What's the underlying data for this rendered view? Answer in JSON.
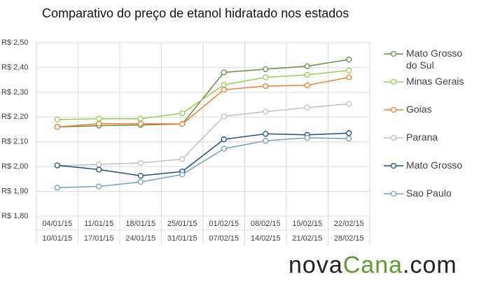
{
  "chart_data": {
    "type": "line",
    "title": "Comparativo do preço de etanol hidratado nos estados",
    "categories": [
      [
        "04/01/15",
        "10/01/15"
      ],
      [
        "11/01/15",
        "17/01/15"
      ],
      [
        "18/01/15",
        "24/01/15"
      ],
      [
        "25/01/15",
        "31/01/15"
      ],
      [
        "01/02/15",
        "07/02/15"
      ],
      [
        "08/02/15",
        "14/02/15"
      ],
      [
        "15/02/15",
        "21/02/15"
      ],
      [
        "22/02/15",
        "28/02/15"
      ]
    ],
    "series": [
      {
        "name": "Mato Grosso do Sul",
        "color": "#6b8e3e",
        "values": [
          2.16,
          2.165,
          2.168,
          2.172,
          2.38,
          2.393,
          2.405,
          2.432
        ]
      },
      {
        "name": "Minas Gerais",
        "color": "#92d050",
        "values": [
          2.19,
          2.193,
          2.193,
          2.215,
          2.33,
          2.36,
          2.37,
          2.388
        ]
      },
      {
        "name": "Goias",
        "color": "#ed7d31",
        "values": [
          2.16,
          2.173,
          2.173,
          2.172,
          2.31,
          2.325,
          2.328,
          2.36
        ]
      },
      {
        "name": "Parana",
        "color": "#bfbfbf",
        "values": [
          2.003,
          2.009,
          2.015,
          2.03,
          2.203,
          2.222,
          2.238,
          2.253
        ]
      },
      {
        "name": "Mato Grosso",
        "color": "#1f4e79",
        "values": [
          2.005,
          1.988,
          1.963,
          1.98,
          2.11,
          2.132,
          2.128,
          2.135
        ]
      },
      {
        "name": "Sao Paulo",
        "color": "#6fa0c0",
        "values": [
          1.915,
          1.92,
          1.938,
          1.968,
          2.072,
          2.104,
          2.116,
          2.113
        ]
      }
    ],
    "ylim": [
      1.8,
      2.5
    ],
    "yticks": [
      {
        "value": 1.8,
        "label": "R$ 1,80"
      },
      {
        "value": 1.9,
        "label": "R$ 1,90"
      },
      {
        "value": 2.0,
        "label": "R$ 2,00"
      },
      {
        "value": 2.1,
        "label": "R$ 2,10"
      },
      {
        "value": 2.2,
        "label": "R$ 2,20"
      },
      {
        "value": 2.3,
        "label": "R$ 2,30"
      },
      {
        "value": 2.4,
        "label": "R$ 2,40"
      },
      {
        "value": 2.5,
        "label": "R$ 2,50"
      }
    ],
    "grid": true,
    "legend": "right"
  },
  "logo": [
    "nova",
    "Cana",
    ".com"
  ]
}
